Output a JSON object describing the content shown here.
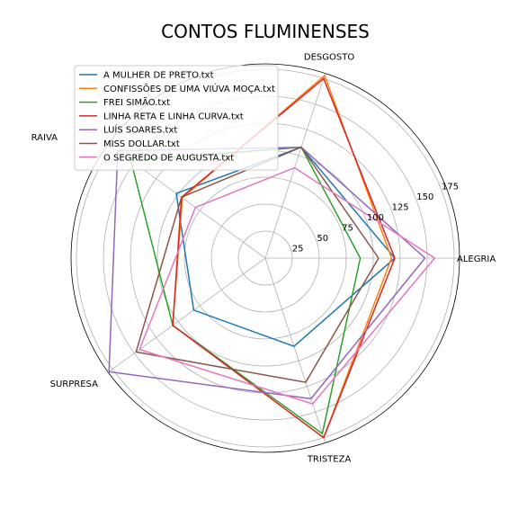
{
  "chart_data": {
    "type": "radar",
    "title": "CONTOS FLUMINENSES",
    "axes": [
      "ALEGRIA",
      "DESGOSTO",
      "RAIVA",
      "SURPRESA",
      "TRISTEZA"
    ],
    "axis_label_extra": "ALEGRIA",
    "radial_ticks": [
      25,
      50,
      75,
      100,
      125,
      150,
      175
    ],
    "rmax": 180,
    "grid": true,
    "legend_position": "top-left",
    "series": [
      {
        "name": "A MULHER DE PRETO.txt",
        "color": "#1f77b4",
        "values": [
          120,
          108,
          102,
          82,
          86
        ]
      },
      {
        "name": "CONFISSÕES DE UMA VIÚVA MOÇA.txt",
        "color": "#ff7f0e",
        "values": [
          117,
          178,
          95,
          106,
          175
        ]
      },
      {
        "name": "FREI SIMÃO.txt",
        "color": "#2ca02c",
        "values": [
          88,
          108,
          154,
          106,
          171
        ]
      },
      {
        "name": "LINHA RETA E LINHA CURVA.txt",
        "color": "#d62728",
        "values": [
          120,
          175,
          96,
          106,
          175
        ]
      },
      {
        "name": "LUÍS SOARES.txt",
        "color": "#9467bd",
        "values": [
          148,
          108,
          169,
          179,
          137
        ]
      },
      {
        "name": "MISS DOLLAR.txt",
        "color": "#8c564b",
        "values": [
          105,
          108,
          96,
          148,
          121
        ]
      },
      {
        "name": "O SEGREDO DE AUGUSTA.txt",
        "color": "#e377c2",
        "values": [
          157,
          88,
          80,
          144,
          142
        ]
      }
    ]
  }
}
